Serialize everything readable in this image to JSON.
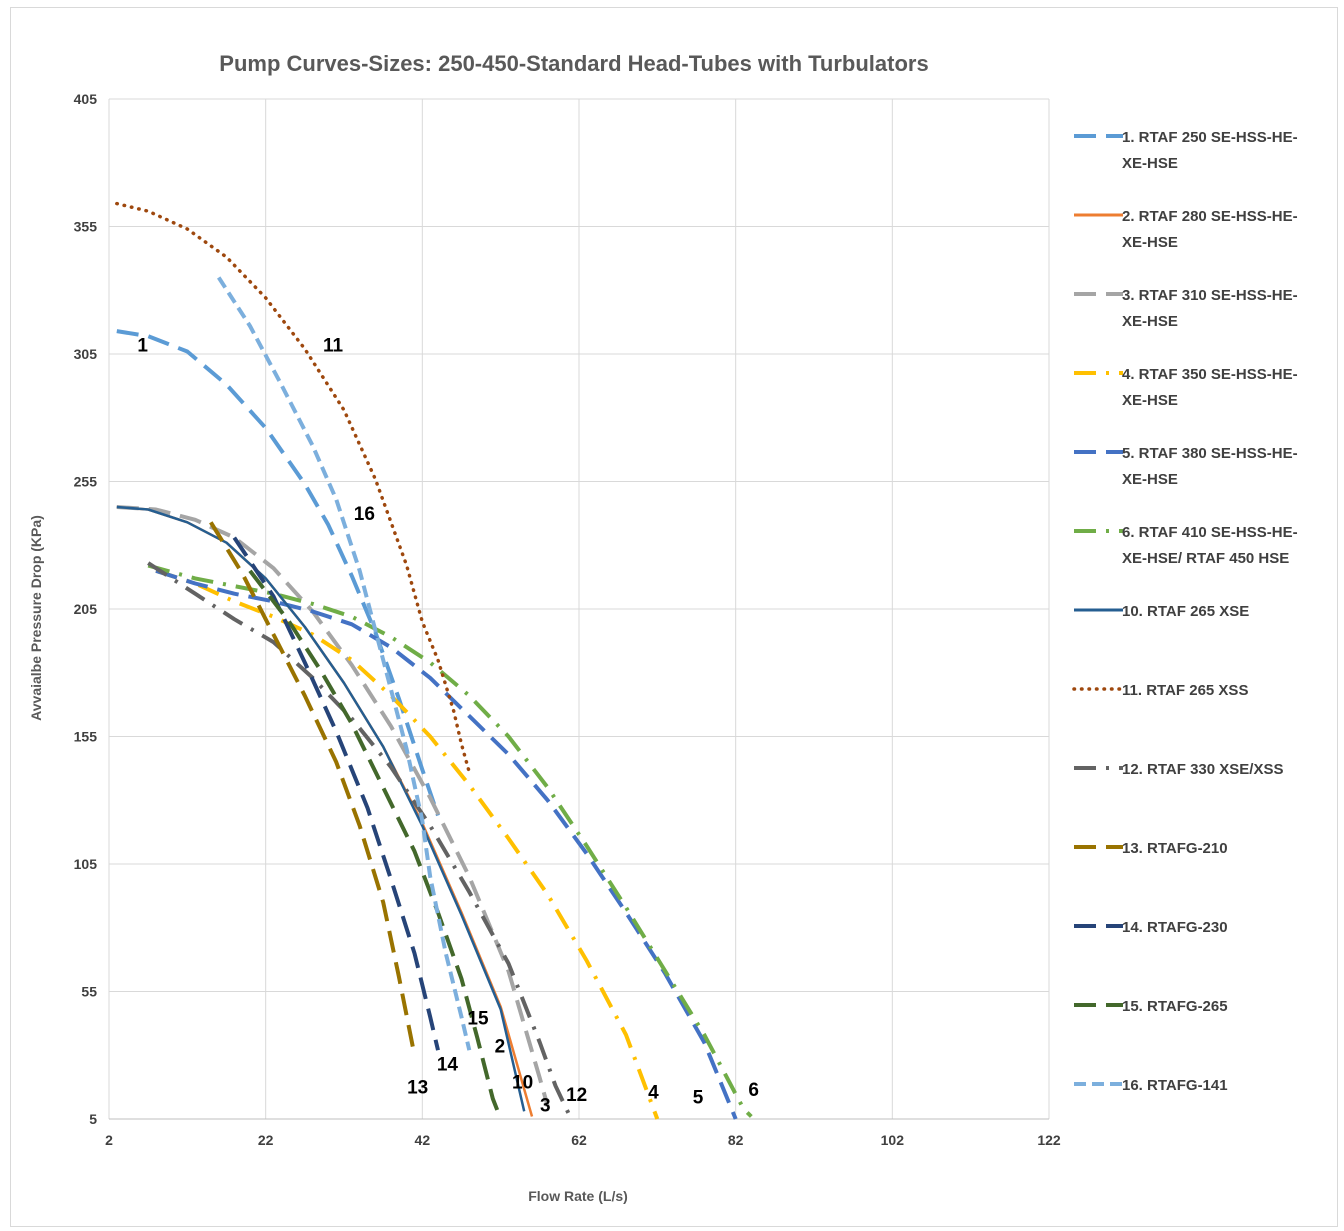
{
  "chart_data": {
    "type": "line",
    "title": "Pump Curves-Sizes: 250-450-Standard Head-Tubes with Turbulators",
    "xlabel": "Flow Rate (L/s)",
    "ylabel": "Avvaialbe Pressure Drop (KPa)",
    "xlim": [
      2,
      122
    ],
    "ylim": [
      5,
      405
    ],
    "x_ticks": [
      "2",
      "22",
      "42",
      "62",
      "82",
      "102",
      "122"
    ],
    "y_ticks": [
      "5",
      "55",
      "105",
      "155",
      "205",
      "255",
      "305",
      "355",
      "405"
    ],
    "grid": "on",
    "legend_position": "right",
    "series": [
      {
        "name": "1. RTAF 250 SE-HSS-HE-XE-HSE",
        "legend_lines": [
          "1. RTAF 250 SE-HSS-HE-",
          "XE-HSE"
        ],
        "label": "1",
        "color": "#5B9BD5",
        "dash": "22,10",
        "points": [
          [
            3,
            314
          ],
          [
            7,
            312
          ],
          [
            12,
            306
          ],
          [
            17,
            293
          ],
          [
            22,
            276
          ],
          [
            27,
            254
          ],
          [
            30,
            238
          ],
          [
            33,
            218
          ],
          [
            36,
            196
          ],
          [
            39,
            170
          ],
          [
            42,
            142
          ],
          [
            44,
            124
          ]
        ]
      },
      {
        "name": "2. RTAF 280 SE-HSS-HE-XE-HSE",
        "legend_lines": [
          "2. RTAF 280 SE-HSS-HE-",
          "XE-HSE"
        ],
        "label": "2",
        "color": "#ED7D31",
        "dash": "",
        "points": [
          [
            3,
            245
          ],
          [
            7,
            244
          ],
          [
            12,
            239
          ],
          [
            17,
            231
          ],
          [
            22,
            217
          ],
          [
            27,
            198
          ],
          [
            32,
            176
          ],
          [
            37,
            151
          ],
          [
            42,
            121
          ],
          [
            47,
            86
          ],
          [
            52,
            49
          ],
          [
            56,
            6
          ]
        ]
      },
      {
        "name": "3. RTAF 310 SE-HSS-HE-XE-HSE",
        "legend_lines": [
          "3. RTAF 310 SE-HSS-HE-",
          "XE-HSE"
        ],
        "label": "3",
        "color": "#A5A5A5",
        "dash": "22,10",
        "points": [
          [
            3,
            245
          ],
          [
            8,
            244
          ],
          [
            13,
            240
          ],
          [
            18,
            233
          ],
          [
            23,
            221
          ],
          [
            28,
            204
          ],
          [
            33,
            183
          ],
          [
            38,
            159
          ],
          [
            43,
            131
          ],
          [
            48,
            100
          ],
          [
            53,
            63
          ],
          [
            57,
            21
          ],
          [
            58,
            10
          ]
        ]
      },
      {
        "name": "4. RTAF 350 SE-HSS-HE-XE-HSE",
        "legend_lines": [
          "4. RTAF 350 SE-HSS-HE-",
          "XE-HSE"
        ],
        "label": "4",
        "color": "#FFC000",
        "dash": "22,10,3,10",
        "points": [
          [
            8,
            220
          ],
          [
            13,
            215
          ],
          [
            18,
            208
          ],
          [
            23,
            202
          ],
          [
            28,
            195
          ],
          [
            33,
            185
          ],
          [
            38,
            171
          ],
          [
            43,
            155
          ],
          [
            48,
            136
          ],
          [
            53,
            115
          ],
          [
            58,
            93
          ],
          [
            63,
            67
          ],
          [
            68,
            38
          ],
          [
            72,
            5
          ]
        ]
      },
      {
        "name": "5. RTAF 380 SE-HSS-HE-XE-HSE",
        "legend_lines": [
          "5. RTAF 380 SE-HSS-HE-",
          "XE-HSE"
        ],
        "label": "5",
        "color": "#4472C4",
        "dash": "22,10",
        "points": [
          [
            8,
            220
          ],
          [
            13,
            215
          ],
          [
            18,
            211
          ],
          [
            23,
            208
          ],
          [
            28,
            204
          ],
          [
            33,
            199
          ],
          [
            38,
            190
          ],
          [
            43,
            178
          ],
          [
            48,
            163
          ],
          [
            53,
            148
          ],
          [
            58,
            130
          ],
          [
            63,
            109
          ],
          [
            68,
            86
          ],
          [
            73,
            62
          ],
          [
            78,
            35
          ],
          [
            82,
            5
          ]
        ]
      },
      {
        "name": "6. RTAF 410 SE-HSS-HE-XE-HSE/ RTAF 450 HSE",
        "legend_lines": [
          "6. RTAF 410 SE-HSS-HE-",
          "XE-HSE/ RTAF 450 HSE"
        ],
        "label": "6",
        "color": "#70AD47",
        "dash": "22,10,3,10",
        "points": [
          [
            7,
            222
          ],
          [
            13,
            217
          ],
          [
            18,
            214
          ],
          [
            23,
            211
          ],
          [
            28,
            207
          ],
          [
            33,
            202
          ],
          [
            38,
            194
          ],
          [
            43,
            184
          ],
          [
            48,
            171
          ],
          [
            53,
            155
          ],
          [
            58,
            135
          ],
          [
            63,
            112
          ],
          [
            68,
            88
          ],
          [
            73,
            63
          ],
          [
            78,
            38
          ],
          [
            83,
            9
          ],
          [
            84,
            6
          ]
        ]
      },
      {
        "name": "10. RTAF 265 XSE",
        "legend_lines": [
          "10. RTAF 265 XSE"
        ],
        "label": "10",
        "color": "#255E91",
        "dash": "",
        "points": [
          [
            3,
            245
          ],
          [
            7,
            244
          ],
          [
            12,
            239
          ],
          [
            17,
            231
          ],
          [
            22,
            217
          ],
          [
            27,
            198
          ],
          [
            32,
            176
          ],
          [
            37,
            151
          ],
          [
            42,
            120
          ],
          [
            47,
            85
          ],
          [
            52,
            48
          ],
          [
            55,
            8
          ]
        ]
      },
      {
        "name": "11. RTAF 265 XSS",
        "legend_lines": [
          "11. RTAF 265 XSS"
        ],
        "label": "11",
        "color": "#9E480E",
        "dash": "3,5",
        "points": [
          [
            3,
            364
          ],
          [
            7,
            361
          ],
          [
            12,
            354
          ],
          [
            17,
            343
          ],
          [
            22,
            327
          ],
          [
            27,
            307
          ],
          [
            32,
            283
          ],
          [
            36,
            256
          ],
          [
            40,
            222
          ],
          [
            42,
            200
          ],
          [
            44,
            185
          ],
          [
            46,
            165
          ],
          [
            47,
            152
          ],
          [
            48,
            141
          ]
        ]
      },
      {
        "name": "12. RTAF 330 XSE/XSS",
        "legend_lines": [
          "12. RTAF 330 XSE/XSS"
        ],
        "label": "12",
        "color": "#636363",
        "dash": "22,10,3,10",
        "points": [
          [
            7,
            223
          ],
          [
            13,
            211
          ],
          [
            18,
            201
          ],
          [
            23,
            192
          ],
          [
            28,
            178
          ],
          [
            33,
            162
          ],
          [
            38,
            143
          ],
          [
            43,
            120
          ],
          [
            48,
            94
          ],
          [
            53,
            66
          ],
          [
            57,
            35
          ],
          [
            59,
            18
          ],
          [
            61,
            5
          ]
        ]
      },
      {
        "name": "13. RTAFG-210",
        "legend_lines": [
          "13. RTAFG-210"
        ],
        "label": "13",
        "color": "#997300",
        "dash": "22,10",
        "points": [
          [
            15,
            239
          ],
          [
            19,
            219
          ],
          [
            23,
            195
          ],
          [
            27,
            171
          ],
          [
            31,
            145
          ],
          [
            34,
            120
          ],
          [
            37,
            90
          ],
          [
            39,
            61
          ],
          [
            41,
            30
          ]
        ]
      },
      {
        "name": "14. RTAFG-230",
        "legend_lines": [
          "14. RTAFG-230"
        ],
        "label": "14",
        "color": "#264478",
        "dash": "22,10",
        "points": [
          [
            18,
            233
          ],
          [
            23,
            210
          ],
          [
            27,
            184
          ],
          [
            31,
            157
          ],
          [
            35,
            127
          ],
          [
            38,
            99
          ],
          [
            41,
            70
          ],
          [
            43,
            45
          ],
          [
            44,
            32
          ]
        ]
      },
      {
        "name": "15. RTAFG-265",
        "legend_lines": [
          "15. RTAFG-265"
        ],
        "label": "15",
        "color": "#43682B",
        "dash": "22,10",
        "points": [
          [
            20,
            220
          ],
          [
            25,
            200
          ],
          [
            29,
            181
          ],
          [
            33,
            160
          ],
          [
            37,
            135
          ],
          [
            41,
            110
          ],
          [
            44,
            86
          ],
          [
            47,
            60
          ],
          [
            49,
            37
          ],
          [
            51,
            13
          ],
          [
            52,
            5
          ]
        ]
      },
      {
        "name": "16. RTAFG-141",
        "legend_lines": [
          "16. RTAFG-141"
        ],
        "label": "16",
        "color": "#7CAFDD",
        "dash": "12,6",
        "points": [
          [
            16,
            335
          ],
          [
            20,
            316
          ],
          [
            24,
            293
          ],
          [
            28,
            269
          ],
          [
            31,
            248
          ],
          [
            34,
            220
          ],
          [
            37,
            185
          ],
          [
            40,
            150
          ],
          [
            42,
            122
          ],
          [
            43,
            100
          ],
          [
            45,
            70
          ],
          [
            47,
            45
          ],
          [
            48,
            32
          ]
        ]
      }
    ],
    "curve_labels": [
      {
        "text": "1",
        "x": 6.3,
        "y": 306
      },
      {
        "text": "11",
        "x": 30.6,
        "y": 306
      },
      {
        "text": "16",
        "x": 34.6,
        "y": 240
      },
      {
        "text": "15",
        "x": 49.1,
        "y": 42
      },
      {
        "text": "2",
        "x": 51.9,
        "y": 31
      },
      {
        "text": "14",
        "x": 45.2,
        "y": 24
      },
      {
        "text": "13",
        "x": 41.4,
        "y": 15
      },
      {
        "text": "10",
        "x": 54.8,
        "y": 17
      },
      {
        "text": "3",
        "x": 57.7,
        "y": 8
      },
      {
        "text": "12",
        "x": 61.7,
        "y": 12
      },
      {
        "text": "4",
        "x": 71.5,
        "y": 13
      },
      {
        "text": "5",
        "x": 77.2,
        "y": 11
      },
      {
        "text": "6",
        "x": 84.3,
        "y": 14
      }
    ]
  }
}
